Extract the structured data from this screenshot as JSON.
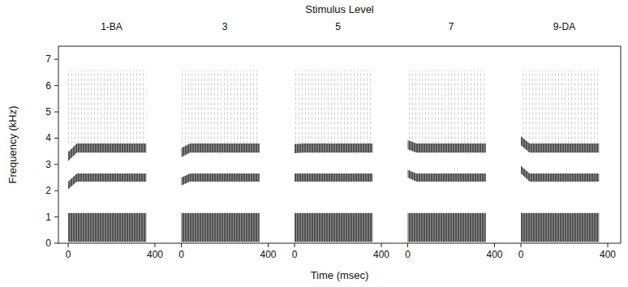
{
  "chart_data": {
    "type": "spectrogram",
    "title": "Stimulus Level",
    "x_label": "Time (msec)",
    "y_label": "Frequency (kHz)",
    "xlim": [
      0,
      400
    ],
    "xticks": [
      0,
      400
    ],
    "ylim": [
      0,
      7.5
    ],
    "yticks": [
      0,
      1,
      2,
      3,
      4,
      5,
      6,
      7
    ],
    "color": "#3a3a3a",
    "duration": 360,
    "transition": 40,
    "f1": [
      0.05,
      1.15
    ],
    "f2": [
      2.35,
      2.65
    ],
    "f3": [
      3.45,
      3.8
    ],
    "noise": [
      3.8,
      6.6
    ],
    "panels": [
      {
        "label": "1-BA",
        "f2_onset": 2.2,
        "f3_onset": 3.3
      },
      {
        "label": "3",
        "f2_onset": 2.35,
        "f3_onset": 3.45
      },
      {
        "label": "5",
        "f2_onset": 2.5,
        "f3_onset": 3.6
      },
      {
        "label": "7",
        "f2_onset": 2.65,
        "f3_onset": 3.75
      },
      {
        "label": "9-DA",
        "f2_onset": 2.8,
        "f3_onset": 3.9
      }
    ]
  }
}
